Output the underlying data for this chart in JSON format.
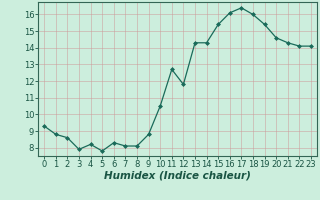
{
  "x": [
    0,
    1,
    2,
    3,
    4,
    5,
    6,
    7,
    8,
    9,
    10,
    11,
    12,
    13,
    14,
    15,
    16,
    17,
    18,
    19,
    20,
    21,
    22,
    23
  ],
  "y": [
    9.3,
    8.8,
    8.6,
    7.9,
    8.2,
    7.8,
    8.3,
    8.1,
    8.1,
    8.8,
    10.5,
    12.7,
    11.8,
    14.3,
    14.3,
    15.4,
    16.1,
    16.4,
    16.0,
    15.4,
    14.6,
    14.3,
    14.1,
    14.1
  ],
  "line_color": "#1a6b5a",
  "marker": "D",
  "marker_size": 2.0,
  "bg_color": "#cceedd",
  "grid_color": "#cc9999",
  "xlabel": "Humidex (Indice chaleur)",
  "xlim": [
    -0.5,
    23.5
  ],
  "ylim": [
    7.5,
    16.75
  ],
  "yticks": [
    8,
    9,
    10,
    11,
    12,
    13,
    14,
    15,
    16
  ],
  "xticks": [
    0,
    1,
    2,
    3,
    4,
    5,
    6,
    7,
    8,
    9,
    10,
    11,
    12,
    13,
    14,
    15,
    16,
    17,
    18,
    19,
    20,
    21,
    22,
    23
  ],
  "xtick_labels": [
    "0",
    "1",
    "2",
    "3",
    "4",
    "5",
    "6",
    "7",
    "8",
    "9",
    "10",
    "11",
    "12",
    "13",
    "14",
    "15",
    "16",
    "17",
    "18",
    "19",
    "20",
    "21",
    "22",
    "23"
  ],
  "xlabel_fontsize": 7.5,
  "tick_fontsize": 6.0,
  "spine_color": "#336655",
  "text_color": "#1a5544"
}
